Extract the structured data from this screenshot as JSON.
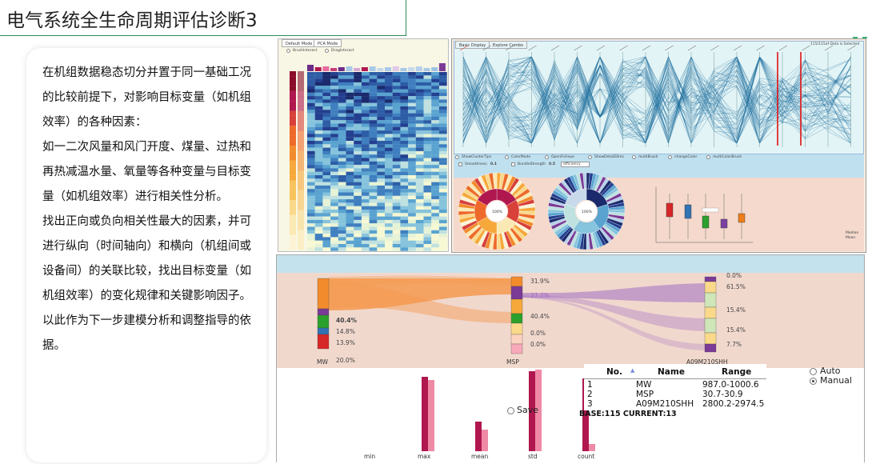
{
  "title": "电气系统全生命周期评估诊断3",
  "description_paragraphs": [
    "在机组数据稳态切分并置于同一基础工况的比较前提下，对影响目标变量（如机组效率）的各种因素：",
    "如一二次风量和风门开度、煤量、过热和再热减温水量、氧量等各种变量与目标变量（如机组效率）进行相关性分析。",
    "找出正向或负向相关性最大的因素，并可进行纵向（时间轴向）和横向（机组间或设备间）的关联比较，找出目标变量（如机组效率）的变化规律和关键影响因子。",
    "以此作为下一步建模分析和调整指导的依据。"
  ],
  "heatmap_panel": {
    "tabs": [
      "Default Mode",
      "PCA Mode"
    ],
    "options": [
      "BrushInteract",
      "DragInteract"
    ]
  },
  "parallel_panel": {
    "tabs": [
      "Basic Display",
      "Explore Combo"
    ],
    "counter": "115/115of Data is Selected",
    "controls": [
      "ShowClusterTips",
      "ColorMode",
      "OpenFisheye",
      "ShowDetailDims",
      "multiBrush",
      "changeColor",
      "multiColorBrush"
    ],
    "sliders": [
      {
        "label": "Smoothness",
        "value": "0.1"
      },
      {
        "label": "BundleStrength",
        "value": "0.5"
      }
    ],
    "select_value": "efficiency",
    "donut_center_1": "100%",
    "donut_center_2": "100%",
    "box_legend": [
      "Median",
      "Mean"
    ],
    "box_series_colors": [
      "#d62728",
      "#3173b4",
      "#2ca02c",
      "#7b3fa0",
      "#ef7d1a"
    ]
  },
  "sankey": {
    "axes": [
      "MW",
      "MSP",
      "A09M210SHH"
    ],
    "left_pcts": [
      "40.4%",
      "14.8%",
      "13.9%",
      "20.0%"
    ],
    "mid_pcts": [
      "31.9%",
      "27.7%",
      "40.4%",
      "0.0%",
      "0.0%"
    ],
    "right_pcts": [
      "0.0%",
      "61.5%",
      "15.4%",
      "15.4%",
      "7.7%"
    ],
    "flow_color": "#f49a4f",
    "flow_color_2": "#b286c6"
  },
  "stats_chart": {
    "type": "bar",
    "categories": [
      "min",
      "max",
      "mean",
      "std",
      "count"
    ],
    "series": [
      {
        "values": [
          0,
          93,
          37,
          100,
          91
        ],
        "color": "#b0174f"
      },
      {
        "values": [
          0,
          89,
          27,
          102,
          9
        ],
        "color": "#ef8aa6"
      }
    ]
  },
  "save_label": "Save",
  "mode_options": [
    {
      "label": "Auto",
      "selected": false
    },
    {
      "label": "Manual",
      "selected": true
    }
  ],
  "table": {
    "headers": [
      "No.",
      "Name",
      "Range"
    ],
    "rows": [
      {
        "no": "1",
        "name": "MW",
        "range": "987.0-1000.6"
      },
      {
        "no": "2",
        "name": "MSP",
        "range": "30.7-30.9"
      },
      {
        "no": "3",
        "name": "A09M210SHH",
        "range": "2800.2-2974.5"
      }
    ]
  },
  "base_current": "BASE:115 CURRENT:13",
  "chart_data": [
    {
      "type": "bar",
      "categories": [
        "min",
        "max",
        "mean",
        "std",
        "count"
      ],
      "series": [
        {
          "values": [
            0,
            93,
            37,
            100,
            91
          ]
        },
        {
          "values": [
            0,
            89,
            27,
            102,
            9
          ]
        }
      ]
    }
  ]
}
